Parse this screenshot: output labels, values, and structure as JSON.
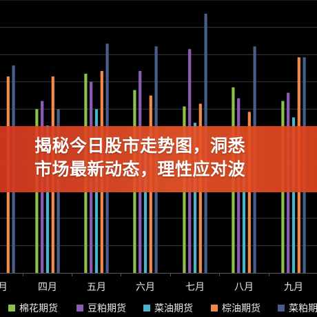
{
  "banner": {
    "line1": "揭秘今日股市走势图，洞悉",
    "line2": "市场最新动态，理性应对波"
  },
  "colors": {
    "background": "#000000",
    "grid": "#3a3a3a",
    "axis": "#5a5a5a",
    "tick_text": "#e8e8e8",
    "banner": "#e04a26"
  },
  "chart_data": {
    "type": "bar",
    "categories": [
      "三月",
      "四月",
      "五月",
      "六月",
      "七月",
      "八月",
      "九月"
    ],
    "visible_tick_labels": [
      "月",
      "四月",
      "五月",
      "六月",
      "七月",
      "八月",
      "九月"
    ],
    "xlabel": "",
    "ylabel": "",
    "ylim": [
      0,
      100
    ],
    "grid": true,
    "legend_position": "bottom",
    "series": [
      {
        "name": "棉花期货",
        "color": "#8dc14c",
        "values": [
          0,
          60,
          73,
          67,
          61,
          68,
          63
        ]
      },
      {
        "name": "豆粕期货",
        "color": "#8a5cb8",
        "values": [
          0,
          63,
          70,
          74,
          82,
          64,
          66
        ]
      },
      {
        "name": "菜油期货",
        "color": "#4cb3c8",
        "values": [
          0,
          54,
          60,
          49,
          55,
          47,
          57
        ]
      },
      {
        "name": "棕油期货",
        "color": "#f08a4a",
        "values": [
          72,
          72,
          74,
          65,
          62,
          59,
          79
        ]
      },
      {
        "name": "菜粕期货",
        "color": "#4a5e8c",
        "values": [
          76,
          60,
          84,
          83,
          95,
          83,
          79
        ]
      }
    ]
  }
}
